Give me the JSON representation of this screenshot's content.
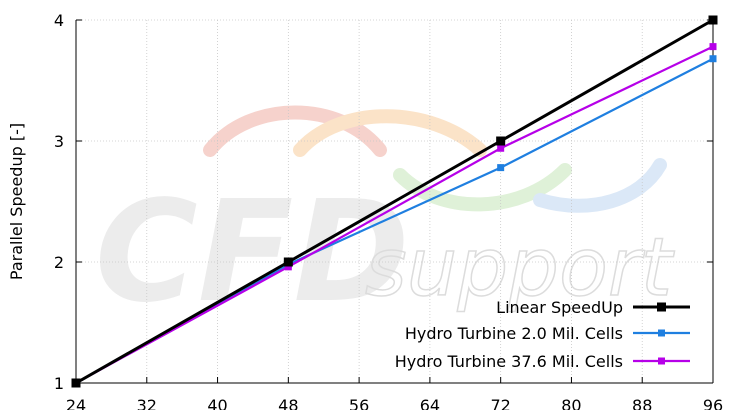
{
  "chart_data": {
    "type": "line",
    "title": "",
    "xlabel": "",
    "ylabel": "Parallel Speedup [-]",
    "xlim": [
      24,
      96
    ],
    "ylim": [
      1,
      4
    ],
    "xticks": [
      24,
      32,
      40,
      48,
      56,
      64,
      72,
      80,
      88,
      96
    ],
    "yticks": [
      1,
      2,
      3,
      4
    ],
    "grid": true,
    "legend_position": "bottom-right",
    "series": [
      {
        "name": "Linear SpeedUp",
        "color": "#000000",
        "marker": "square",
        "x": [
          24,
          48,
          72,
          96
        ],
        "y": [
          1,
          2,
          3,
          4
        ]
      },
      {
        "name": "Hydro Turbine 2.0 Mil. Cells",
        "color": "#1f7fe0",
        "marker": "square",
        "x": [
          24,
          48,
          72,
          96
        ],
        "y": [
          1,
          1.98,
          2.78,
          3.68
        ]
      },
      {
        "name": "Hydro Turbine 37.6 Mil. Cells",
        "color": "#b600e8",
        "marker": "square",
        "x": [
          24,
          48,
          72,
          96
        ],
        "y": [
          1,
          1.96,
          2.94,
          3.78
        ]
      }
    ]
  },
  "watermark": {
    "brand_main": "CFD",
    "brand_sub": "support"
  }
}
